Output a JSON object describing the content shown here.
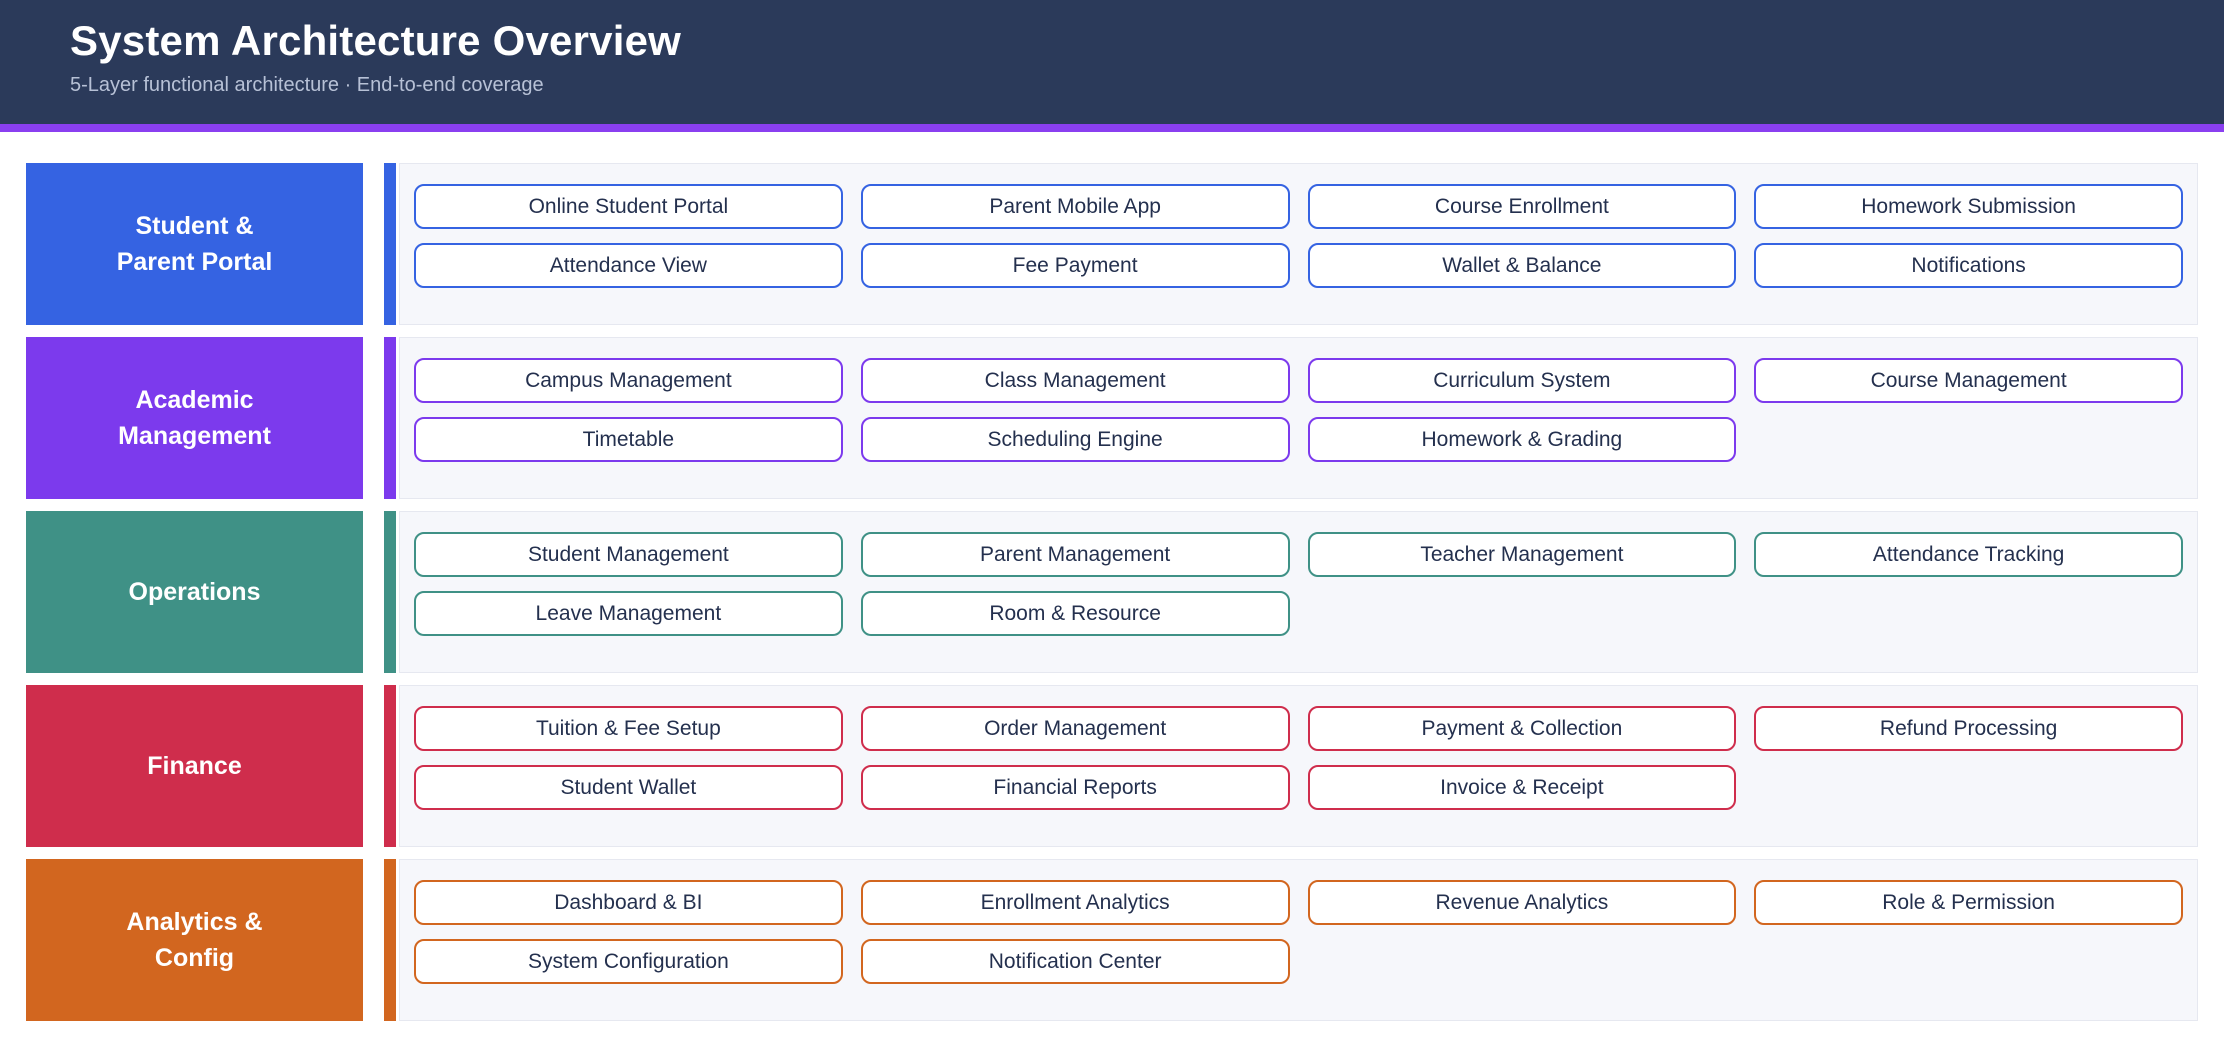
{
  "header": {
    "title": "System Architecture Overview",
    "subtitle": "5-Layer functional architecture · End-to-end coverage",
    "background": "#2b3a5a",
    "accent_color": "#8a3ff0"
  },
  "panel": {
    "background": "#f6f7fb",
    "border": "#e6e8f0"
  },
  "layers": [
    {
      "name": "Student &\nParent Portal",
      "color": "#3563e2",
      "items": [
        "Online Student Portal",
        "Parent Mobile App",
        "Course Enrollment",
        "Homework Submission",
        "Attendance View",
        "Fee Payment",
        "Wallet & Balance",
        "Notifications"
      ]
    },
    {
      "name": "Academic\nManagement",
      "color": "#7c3aed",
      "items": [
        "Campus Management",
        "Class Management",
        "Curriculum System",
        "Course Management",
        "Timetable",
        "Scheduling Engine",
        "Homework & Grading"
      ]
    },
    {
      "name": "Operations",
      "color": "#3f9186",
      "items": [
        "Student Management",
        "Parent Management",
        "Teacher Management",
        "Attendance Tracking",
        "Leave Management",
        "Room & Resource"
      ]
    },
    {
      "name": "Finance",
      "color": "#cf2d4c",
      "items": [
        "Tuition & Fee Setup",
        "Order Management",
        "Payment & Collection",
        "Refund Processing",
        "Student Wallet",
        "Financial Reports",
        "Invoice & Receipt"
      ]
    },
    {
      "name": "Analytics &\nConfig",
      "color": "#d2661f",
      "items": [
        "Dashboard & BI",
        "Enrollment Analytics",
        "Revenue Analytics",
        "Role & Permission",
        "System Configuration",
        "Notification Center"
      ]
    }
  ]
}
